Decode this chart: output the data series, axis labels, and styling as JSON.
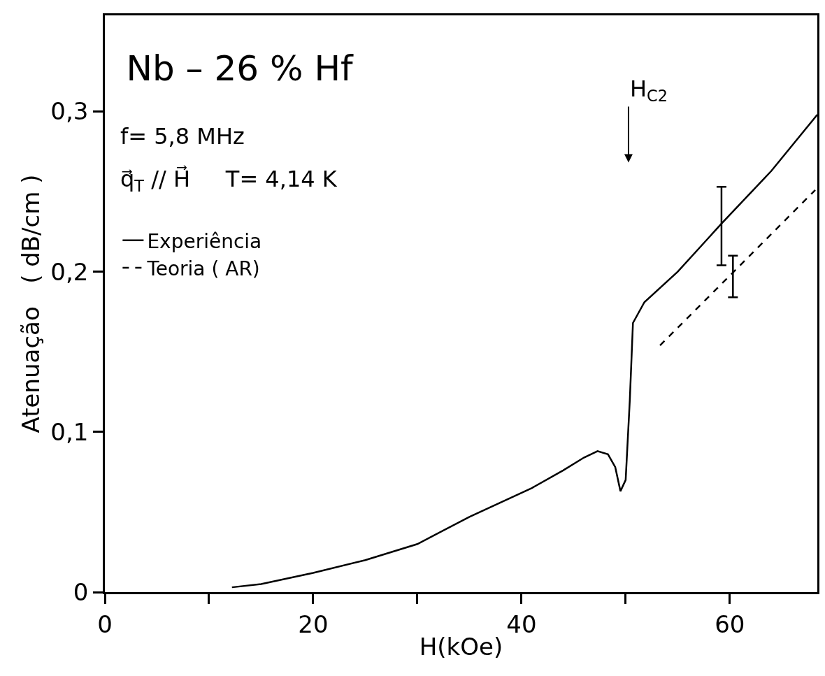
{
  "chart_data": {
    "type": "line",
    "title": "Nb – 26 % Hf",
    "xlabel": "H(kOe)",
    "ylabel": "Atenuação   ( dB/cm )",
    "annotations": [
      "f= 5,8 MHz",
      "q⃗$_{T}$ // H⃗     T= 4,14 K",
      "H$_{C2}$"
    ],
    "xlim": [
      0,
      68.4
    ],
    "ylim": [
      0,
      0.36
    ],
    "xticks": [
      0,
      {
        "value": 10,
        "label": null
      },
      20,
      {
        "value": 30,
        "label": null
      },
      40,
      {
        "value": 50,
        "label": null
      },
      60
    ],
    "yticks": [
      0,
      {
        "value": 0.1,
        "label": "0,1"
      },
      {
        "value": 0.2,
        "label": "0,2"
      },
      {
        "value": 0.3,
        "label": "0,3"
      }
    ],
    "legend": "top left",
    "series": [
      {
        "name": "Experiência",
        "color": "#000000",
        "line_style": "solid",
        "x": [
          12.2,
          15,
          20,
          25,
          30,
          35,
          41,
          44,
          46,
          47.3,
          48.3,
          49,
          49.5,
          50,
          50.4,
          50.7,
          51.8,
          55,
          59.2,
          64,
          68.4
        ],
        "values": [
          0.003,
          0.005,
          0.012,
          0.02,
          0.03,
          0.047,
          0.065,
          0.076,
          0.084,
          0.088,
          0.086,
          0.078,
          0.063,
          0.07,
          0.12,
          0.168,
          0.181,
          0.2,
          0.23,
          0.263,
          0.298
        ],
        "errors": [
          null,
          null,
          null,
          null,
          null,
          null,
          null,
          null,
          null,
          null,
          null,
          null,
          null,
          null,
          null,
          null,
          null,
          null,
          [
            0.204,
            0.253
          ],
          null,
          null
        ]
      },
      {
        "name": "Teoria ( AR)",
        "color": "#000000",
        "line_style": "dashed",
        "x": [
          53.3,
          60.3,
          68.2
        ],
        "values": [
          0.154,
          0.1995,
          0.251
        ],
        "errors": [
          null,
          [
            0.184,
            0.21
          ],
          null
        ]
      }
    ]
  }
}
